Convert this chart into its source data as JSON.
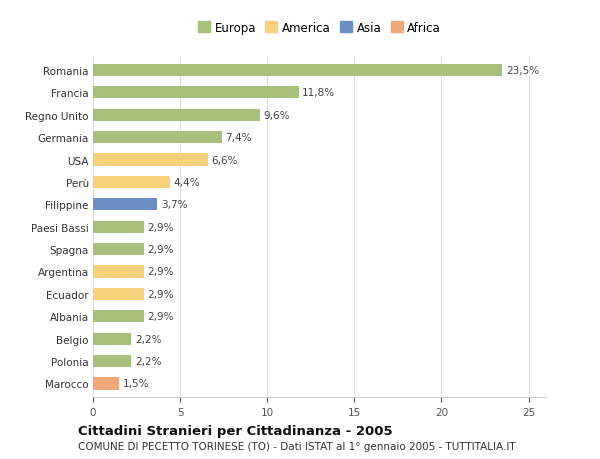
{
  "categories": [
    "Romania",
    "Francia",
    "Regno Unito",
    "Germania",
    "USA",
    "Perù",
    "Filippine",
    "Paesi Bassi",
    "Spagna",
    "Argentina",
    "Ecuador",
    "Albania",
    "Belgio",
    "Polonia",
    "Marocco"
  ],
  "values": [
    23.5,
    11.8,
    9.6,
    7.4,
    6.6,
    4.4,
    3.7,
    2.9,
    2.9,
    2.9,
    2.9,
    2.9,
    2.2,
    2.2,
    1.5
  ],
  "labels": [
    "23,5%",
    "11,8%",
    "9,6%",
    "7,4%",
    "6,6%",
    "4,4%",
    "3,7%",
    "2,9%",
    "2,9%",
    "2,9%",
    "2,9%",
    "2,9%",
    "2,2%",
    "2,2%",
    "1,5%"
  ],
  "colors": [
    "#a8c07a",
    "#a8c07a",
    "#a8c07a",
    "#a8c07a",
    "#f7d07a",
    "#f7d07a",
    "#6b8ec4",
    "#a8c07a",
    "#a8c07a",
    "#f7d07a",
    "#f7d07a",
    "#a8c07a",
    "#a8c07a",
    "#a8c07a",
    "#f0a878"
  ],
  "legend_labels": [
    "Europa",
    "America",
    "Asia",
    "Africa"
  ],
  "legend_colors": [
    "#a8c07a",
    "#f7d07a",
    "#6b8ec4",
    "#f0a878"
  ],
  "title": "Cittadini Stranieri per Cittadinanza - 2005",
  "subtitle": "COMUNE DI PECETTO TORINESE (TO) - Dati ISTAT al 1° gennaio 2005 - TUTTITALIA.IT",
  "xlim": [
    0,
    26
  ],
  "xticks": [
    0,
    5,
    10,
    15,
    20,
    25
  ],
  "background_color": "#ffffff",
  "bar_height": 0.55,
  "title_fontsize": 9.5,
  "subtitle_fontsize": 7.5,
  "label_fontsize": 7.5,
  "tick_fontsize": 7.5,
  "legend_fontsize": 8.5
}
